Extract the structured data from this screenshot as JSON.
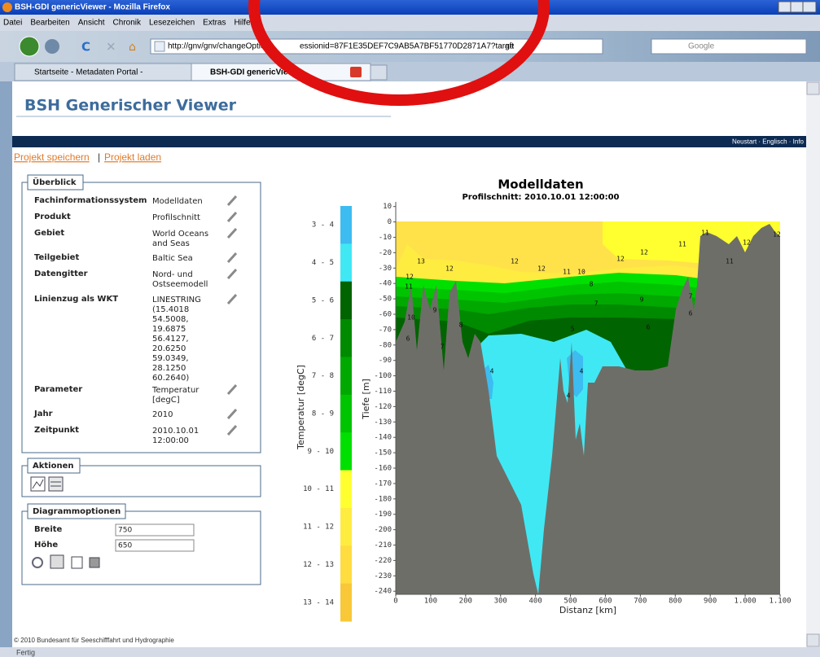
{
  "window": {
    "title": "BSH-GDI genericViewer - Mozilla Firefox",
    "menu": [
      "Datei",
      "Bearbeiten",
      "Ansicht",
      "Chronik",
      "Lesezeichen",
      "Extras",
      "Hilfe"
    ],
    "url_parts": [
      "http://gnv/gnv/changeOptions",
      "essionid=87F1E35DEF7C9AB5A7BF51770D2871A7?targe",
      "aft"
    ],
    "search": "Google",
    "tabs": [
      "Startseite - Metadaten Portal -",
      "BSH-GDI genericViewer"
    ],
    "status": "Fertig"
  },
  "header": {
    "title": "BSH Generischer Viewer",
    "nav": "Neustart · Englisch · Info",
    "links": [
      "Projekt speichern",
      "Projekt laden"
    ],
    "separator": "|"
  },
  "overview": {
    "legend": "Überblick",
    "rows": [
      {
        "label": "Fachinformationssystem",
        "value": [
          "Modelldaten"
        ]
      },
      {
        "label": "Produkt",
        "value": [
          "Profilschnitt"
        ]
      },
      {
        "label": "Gebiet",
        "value": [
          "World Oceans",
          "and Seas"
        ]
      },
      {
        "label": "Teilgebiet",
        "value": [
          "Baltic Sea"
        ]
      },
      {
        "label": "Datengitter",
        "value": [
          "Nord- und",
          "Ostseemodell"
        ]
      },
      {
        "label": "Linienzug als WKT",
        "value": [
          "LINESTRING",
          "(15.4018",
          "54.5008,",
          "19.6875",
          "56.4127,",
          "20.6250",
          "59.0349,",
          "28.1250",
          "60.2640)"
        ]
      },
      {
        "label": "Parameter",
        "value": [
          "Temperatur",
          "[degC]"
        ]
      },
      {
        "label": "Jahr",
        "value": [
          "2010"
        ]
      },
      {
        "label": "Zeitpunkt",
        "value": [
          "2010.10.01",
          "12:00:00"
        ]
      }
    ]
  },
  "actions": {
    "legend": "Aktionen"
  },
  "diagram_options": {
    "legend": "Diagrammoptionen",
    "fields": [
      {
        "label": "Breite",
        "value": "750"
      },
      {
        "label": "Höhe",
        "value": "650"
      }
    ]
  },
  "chart": {
    "title": "Modelldaten",
    "subtitle": "Profilschnitt: 2010.10.01 12:00:00",
    "y_label": "Tiefe [m]",
    "x_label": "Distanz [km]",
    "ylim": [
      -242,
      13
    ],
    "xlim": [
      0,
      1100
    ],
    "yticks": [
      10,
      0,
      -10,
      -20,
      -30,
      -40,
      -50,
      -60,
      -70,
      -80,
      -90,
      -100,
      -110,
      -120,
      -130,
      -140,
      -150,
      -160,
      -170,
      -180,
      -190,
      -200,
      -210,
      -220,
      -230,
      -240
    ],
    "xticks": [
      0,
      100,
      200,
      300,
      400,
      500,
      600,
      700,
      800,
      900,
      {
        "value": 1000,
        "label": "1.000"
      },
      {
        "value": 1100,
        "label": "1.100"
      }
    ],
    "colorbar": {
      "label": "Temperatur [degC]",
      "bins": [
        {
          "label": "3 - 4",
          "color": "#3cbcf0"
        },
        {
          "label": "4 - 5",
          "color": "#40e8f4"
        },
        {
          "label": "5 - 6",
          "color": "#006400"
        },
        {
          "label": "6 - 7",
          "color": "#008a00"
        },
        {
          "label": "7 - 8",
          "color": "#00a800"
        },
        {
          "label": "8 - 9",
          "color": "#00c400"
        },
        {
          "label": "9 - 10",
          "color": "#00e000"
        },
        {
          "label": "10 - 11",
          "color": "#ffff30"
        },
        {
          "label": "11 - 12",
          "color": "#ffec40"
        },
        {
          "label": "12 - 13",
          "color": "#ffdc40"
        },
        {
          "label": "13 - 14",
          "color": "#f8c838"
        }
      ]
    },
    "contour_labels": [
      "13",
      "12",
      "12",
      "12",
      "11",
      "10",
      "12",
      "12",
      "11",
      "11",
      "12",
      "11",
      "12",
      "12",
      "11",
      "10",
      "9",
      "8",
      "7",
      "6",
      "4",
      "4",
      "4",
      "9",
      "7",
      "6",
      "5",
      "8",
      "7",
      "6"
    ]
  },
  "footer": "© 2010 Bundesamt für Seeschifffahrt und Hydrographie"
}
